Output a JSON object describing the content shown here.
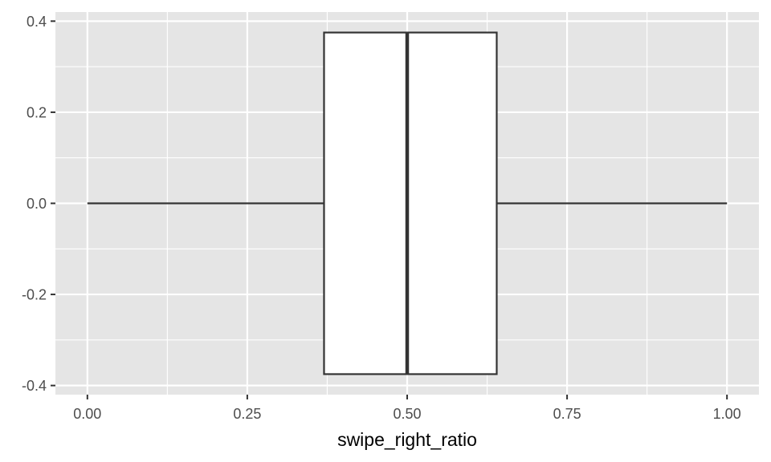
{
  "chart_data": {
    "type": "boxplot",
    "orientation": "horizontal",
    "xlabel": "swipe_right_ratio",
    "ylabel": "",
    "title": "",
    "xlim": [
      -0.05,
      1.05
    ],
    "ylim": [
      -0.42,
      0.42
    ],
    "x_ticks": [
      0.0,
      0.25,
      0.5,
      0.75,
      1.0
    ],
    "x_tick_labels": [
      "0.00",
      "0.25",
      "0.50",
      "0.75",
      "1.00"
    ],
    "y_ticks": [
      0.4,
      0.2,
      0.0,
      -0.2,
      -0.4
    ],
    "y_tick_labels": [
      "0.4",
      "0.2",
      "0.0",
      "-0.2",
      "-0.4"
    ],
    "box": {
      "whisker_low": 0.0,
      "q1": 0.37,
      "median": 0.5,
      "q3": 0.64,
      "whisker_high": 1.0,
      "box_y_range": [
        -0.375,
        0.375
      ],
      "whisker_y": 0.0
    },
    "grid": true,
    "colors": {
      "panel_background": "#e5e5e5",
      "grid_line": "#ffffff",
      "box_fill": "#ffffff",
      "box_stroke": "#333333",
      "tick_label": "#4d4d4d",
      "tick_mark": "#333333",
      "axis_title": "#000000"
    }
  }
}
